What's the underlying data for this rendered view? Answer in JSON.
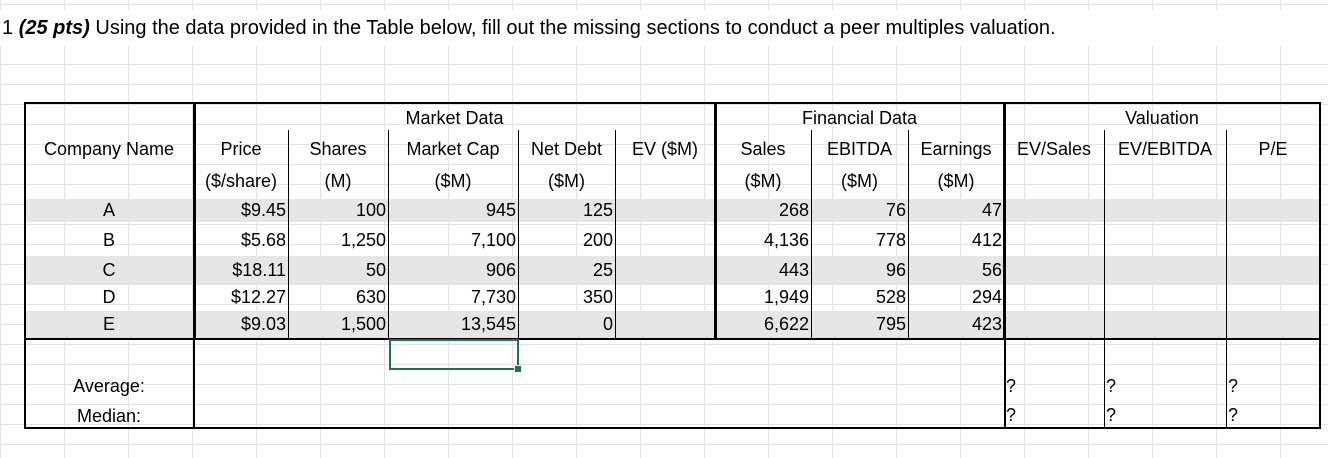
{
  "instruction": {
    "number": "1",
    "points": "(25 pts)",
    "text": "Using the data provided in the Table below, fill out the missing sections to conduct a peer multiples valuation."
  },
  "groups": {
    "market": "Market Data",
    "financial": "Financial Data",
    "valuation": "Valuation"
  },
  "headers": {
    "company": "Company Name",
    "price": [
      "Price",
      "($/share)"
    ],
    "shares": [
      "Shares",
      "(M)"
    ],
    "mktcap": [
      "Market Cap",
      "($M)"
    ],
    "netdebt": [
      "Net Debt",
      "($M)"
    ],
    "ev": "EV ($M)",
    "sales": [
      "Sales",
      "($M)"
    ],
    "ebitda": [
      "EBITDA",
      "($M)"
    ],
    "earnings": [
      "Earnings",
      "($M)"
    ],
    "ev_sales": "EV/Sales",
    "ev_ebitda": "EV/EBITDA",
    "pe": "P/E"
  },
  "rows": [
    {
      "company": "A",
      "price": "$9.45",
      "shares": "100",
      "mktcap": "945",
      "netdebt": "125",
      "sales": "268",
      "ebitda": "76",
      "earnings": "47"
    },
    {
      "company": "B",
      "price": "$5.68",
      "shares": "1,250",
      "mktcap": "7,100",
      "netdebt": "200",
      "sales": "4,136",
      "ebitda": "778",
      "earnings": "412"
    },
    {
      "company": "C",
      "price": "$18.11",
      "shares": "50",
      "mktcap": "906",
      "netdebt": "25",
      "sales": "443",
      "ebitda": "96",
      "earnings": "56"
    },
    {
      "company": "D",
      "price": "$12.27",
      "shares": "630",
      "mktcap": "7,730",
      "netdebt": "350",
      "sales": "1,949",
      "ebitda": "528",
      "earnings": "294"
    },
    {
      "company": "E",
      "price": "$9.03",
      "shares": "1,500",
      "mktcap": "13,545",
      "netdebt": "0",
      "sales": "6,622",
      "ebitda": "795",
      "earnings": "423"
    }
  ],
  "summary": {
    "average_label": "Average:",
    "median_label": "Median:",
    "average": {
      "ev_sales": "?",
      "ev_ebitda": "?",
      "pe": "?"
    },
    "median": {
      "ev_sales": "?",
      "ev_ebitda": "?",
      "pe": "?"
    }
  }
}
